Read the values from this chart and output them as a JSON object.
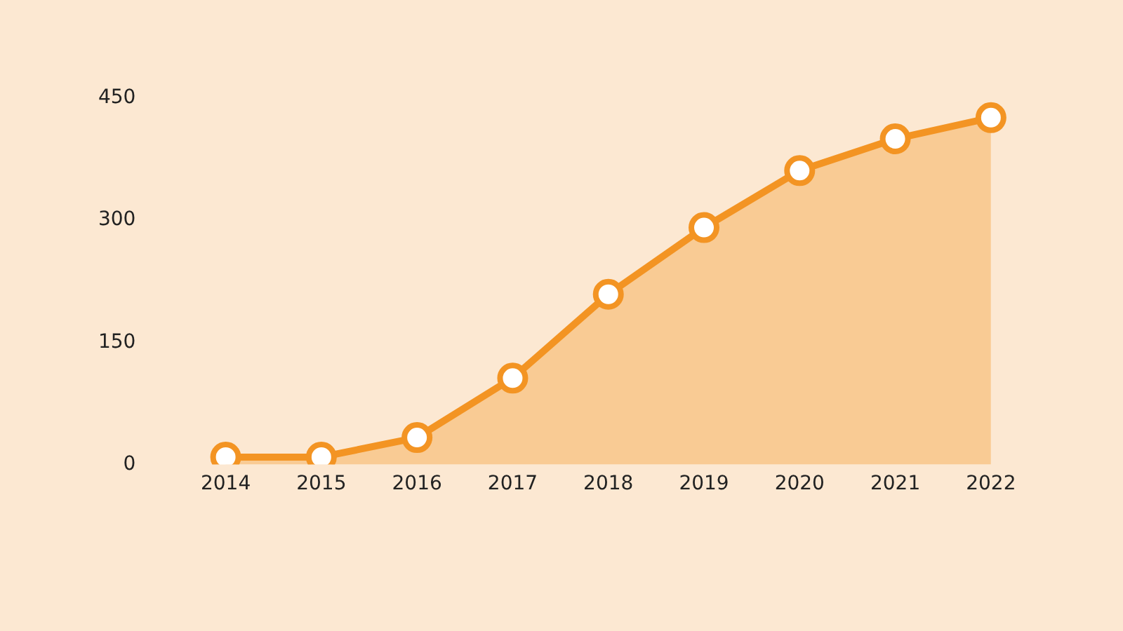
{
  "chart_data": {
    "type": "area",
    "categories": [
      "2014",
      "2015",
      "2016",
      "2017",
      "2018",
      "2019",
      "2020",
      "2021",
      "2022"
    ],
    "series": [
      {
        "color": "#f39423",
        "values": [
          9,
          9,
          33,
          106,
          209,
          291,
          361,
          400,
          426
        ]
      }
    ],
    "ylim": [
      0,
      450
    ],
    "yticks": [
      0,
      150,
      300,
      450
    ],
    "grid": false,
    "legend": false,
    "marker": "circle",
    "line_style": "solid"
  }
}
